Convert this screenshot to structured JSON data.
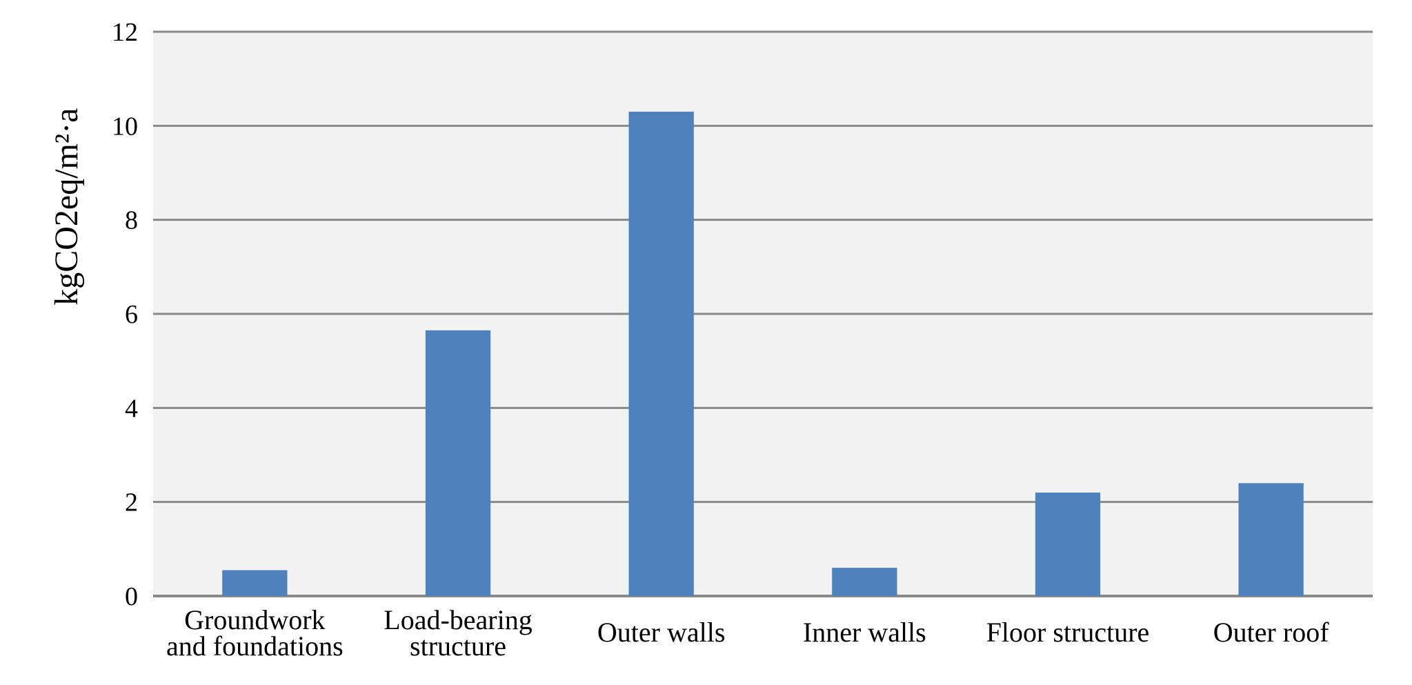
{
  "chart_data": {
    "type": "bar",
    "ylabel": "kgCO2eq/m²·a",
    "ylim": [
      0,
      12
    ],
    "yticks": [
      "0",
      "2",
      "4",
      "6",
      "8",
      "10",
      "12"
    ],
    "grid": true,
    "categories": [
      [
        "Groundwork",
        "and foundations"
      ],
      [
        "Load-bearing",
        "structure"
      ],
      [
        "Outer walls"
      ],
      [
        "Inner walls"
      ],
      [
        "Floor structure"
      ],
      [
        "Outer roof"
      ]
    ],
    "values": [
      0.55,
      5.65,
      10.3,
      0.6,
      2.2,
      2.4
    ],
    "colors": {
      "bar": "#4f81bd",
      "plot_background": "#f2f2f2",
      "grid": "#898989"
    }
  }
}
